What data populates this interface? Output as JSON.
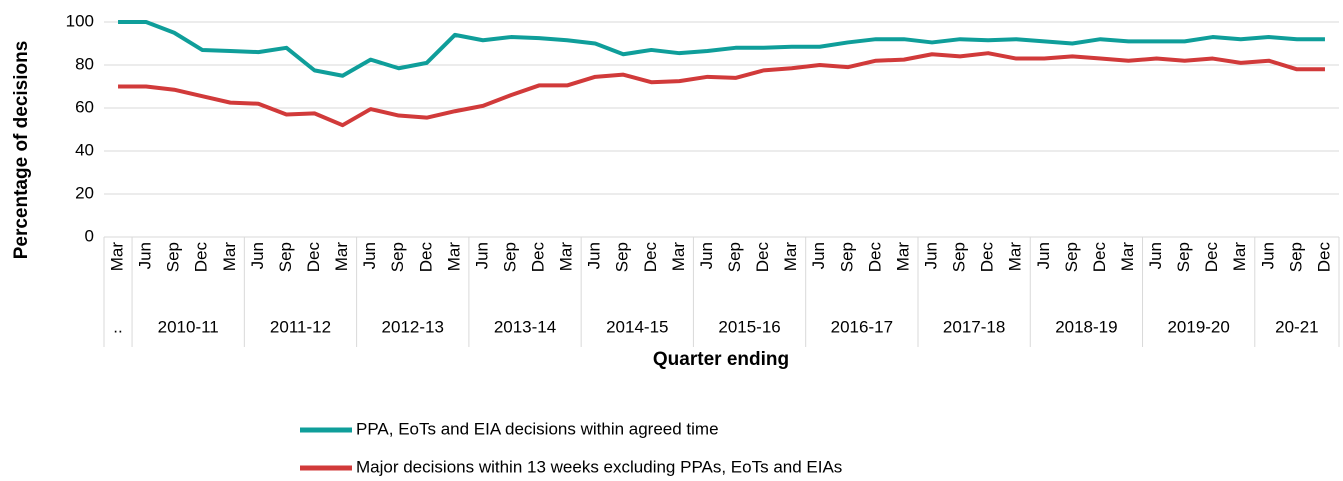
{
  "chart_data": {
    "type": "line",
    "y_label": "Percentage of decisions",
    "x_label": "Quarter ending",
    "category_groups": [
      {
        "label": "..",
        "categories": [
          "Mar"
        ]
      },
      {
        "label": "2010-11",
        "categories": [
          "Jun",
          "Sep",
          "Dec",
          "Mar"
        ]
      },
      {
        "label": "2011-12",
        "categories": [
          "Jun",
          "Sep",
          "Dec",
          "Mar"
        ]
      },
      {
        "label": "2012-13",
        "categories": [
          "Jun",
          "Sep",
          "Dec",
          "Mar"
        ]
      },
      {
        "label": "2013-14",
        "categories": [
          "Jun",
          "Sep",
          "Dec",
          "Mar"
        ]
      },
      {
        "label": "2014-15",
        "categories": [
          "Jun",
          "Sep",
          "Dec",
          "Mar"
        ]
      },
      {
        "label": "2015-16",
        "categories": [
          "Jun",
          "Sep",
          "Dec",
          "Mar"
        ]
      },
      {
        "label": "2016-17",
        "categories": [
          "Jun",
          "Sep",
          "Dec",
          "Mar"
        ]
      },
      {
        "label": "2017-18",
        "categories": [
          "Jun",
          "Sep",
          "Dec",
          "Mar"
        ]
      },
      {
        "label": "2018-19",
        "categories": [
          "Jun",
          "Sep",
          "Dec",
          "Mar"
        ]
      },
      {
        "label": "2019-20",
        "categories": [
          "Jun",
          "Sep",
          "Dec",
          "Mar"
        ]
      },
      {
        "label": "20-21",
        "categories": [
          "Jun",
          "Sep",
          "Dec"
        ]
      }
    ],
    "series": [
      {
        "name": "PPA, EoTs and EIA decisions within agreed time",
        "color": "#0f9e9a",
        "values": [
          100,
          100,
          95,
          87,
          86.5,
          86,
          88,
          77.5,
          75,
          82.5,
          78.5,
          81,
          94,
          91.5,
          93,
          92.5,
          91.5,
          90,
          85,
          87,
          85.5,
          86.5,
          88,
          88,
          88.5,
          88.5,
          90.5,
          92,
          92,
          90.5,
          92,
          91.5,
          92,
          91,
          90,
          92,
          91,
          91,
          91,
          93,
          92,
          93,
          92,
          92
        ]
      },
      {
        "name": "Major decisions within 13 weeks excluding PPAs, EoTs and EIAs",
        "color": "#d13a3a",
        "values": [
          70,
          70,
          68.5,
          65.5,
          62.5,
          62,
          57,
          57.5,
          52,
          59.5,
          56.5,
          55.5,
          58.5,
          61,
          66,
          70.5,
          70.5,
          74.5,
          75.5,
          72,
          72.5,
          74.5,
          74,
          77.5,
          78.5,
          80,
          79,
          82,
          82.5,
          85,
          84,
          85.5,
          83,
          83,
          84,
          83,
          82,
          83,
          82,
          83,
          81,
          82,
          78,
          78
        ]
      }
    ],
    "ylim": [
      0,
      100
    ],
    "yticks": [
      0,
      20,
      40,
      60,
      80,
      100
    ],
    "grid": true,
    "legend": "bottom"
  }
}
